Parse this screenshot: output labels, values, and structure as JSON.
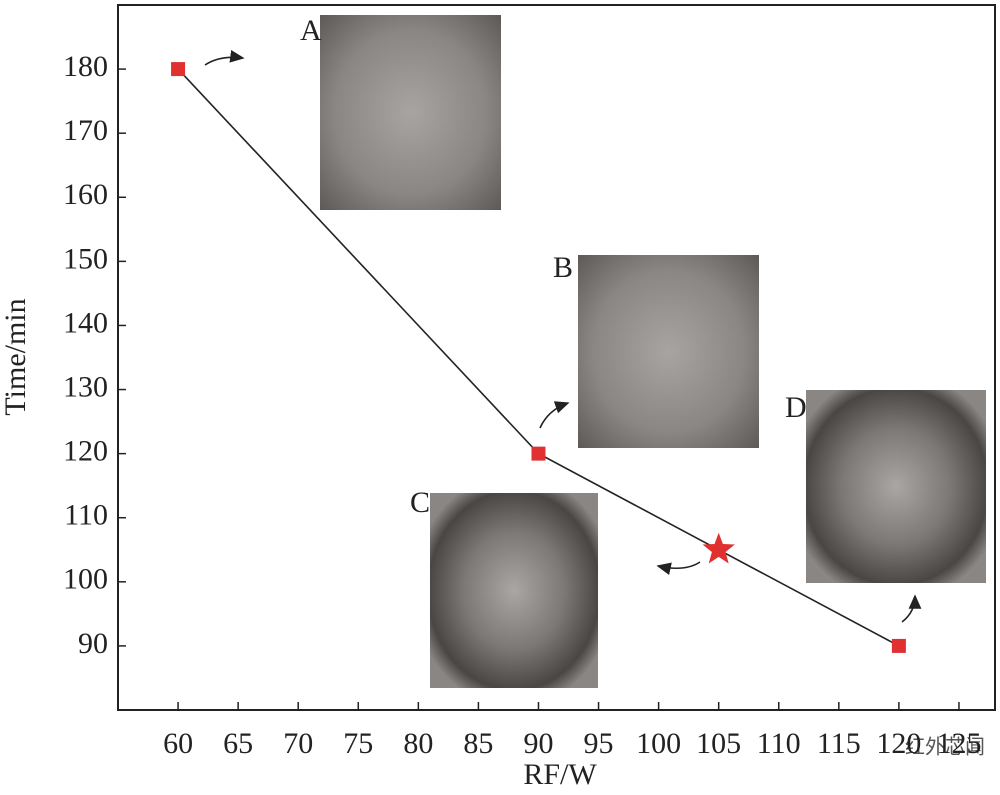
{
  "chart_data": {
    "type": "line",
    "x_label": "RF/W",
    "y_label": "Time/min",
    "series": [
      {
        "name": "Time",
        "color": "#222222",
        "marker_color": "#e03030",
        "x": [
          60,
          90,
          105,
          120
        ],
        "values": [
          180,
          120,
          105,
          90
        ],
        "markers": [
          "square",
          "square",
          "star",
          "square"
        ]
      }
    ],
    "xlim": [
      55,
      128
    ],
    "ylim": [
      80,
      190
    ],
    "xticks": [
      60,
      65,
      70,
      75,
      80,
      85,
      90,
      95,
      100,
      105,
      110,
      115,
      120,
      125
    ],
    "yticks": [
      90,
      100,
      110,
      120,
      130,
      140,
      150,
      160,
      170,
      180
    ],
    "annotations": [
      "A",
      "B",
      "C",
      "D"
    ],
    "watermark": "红外芯闻"
  }
}
